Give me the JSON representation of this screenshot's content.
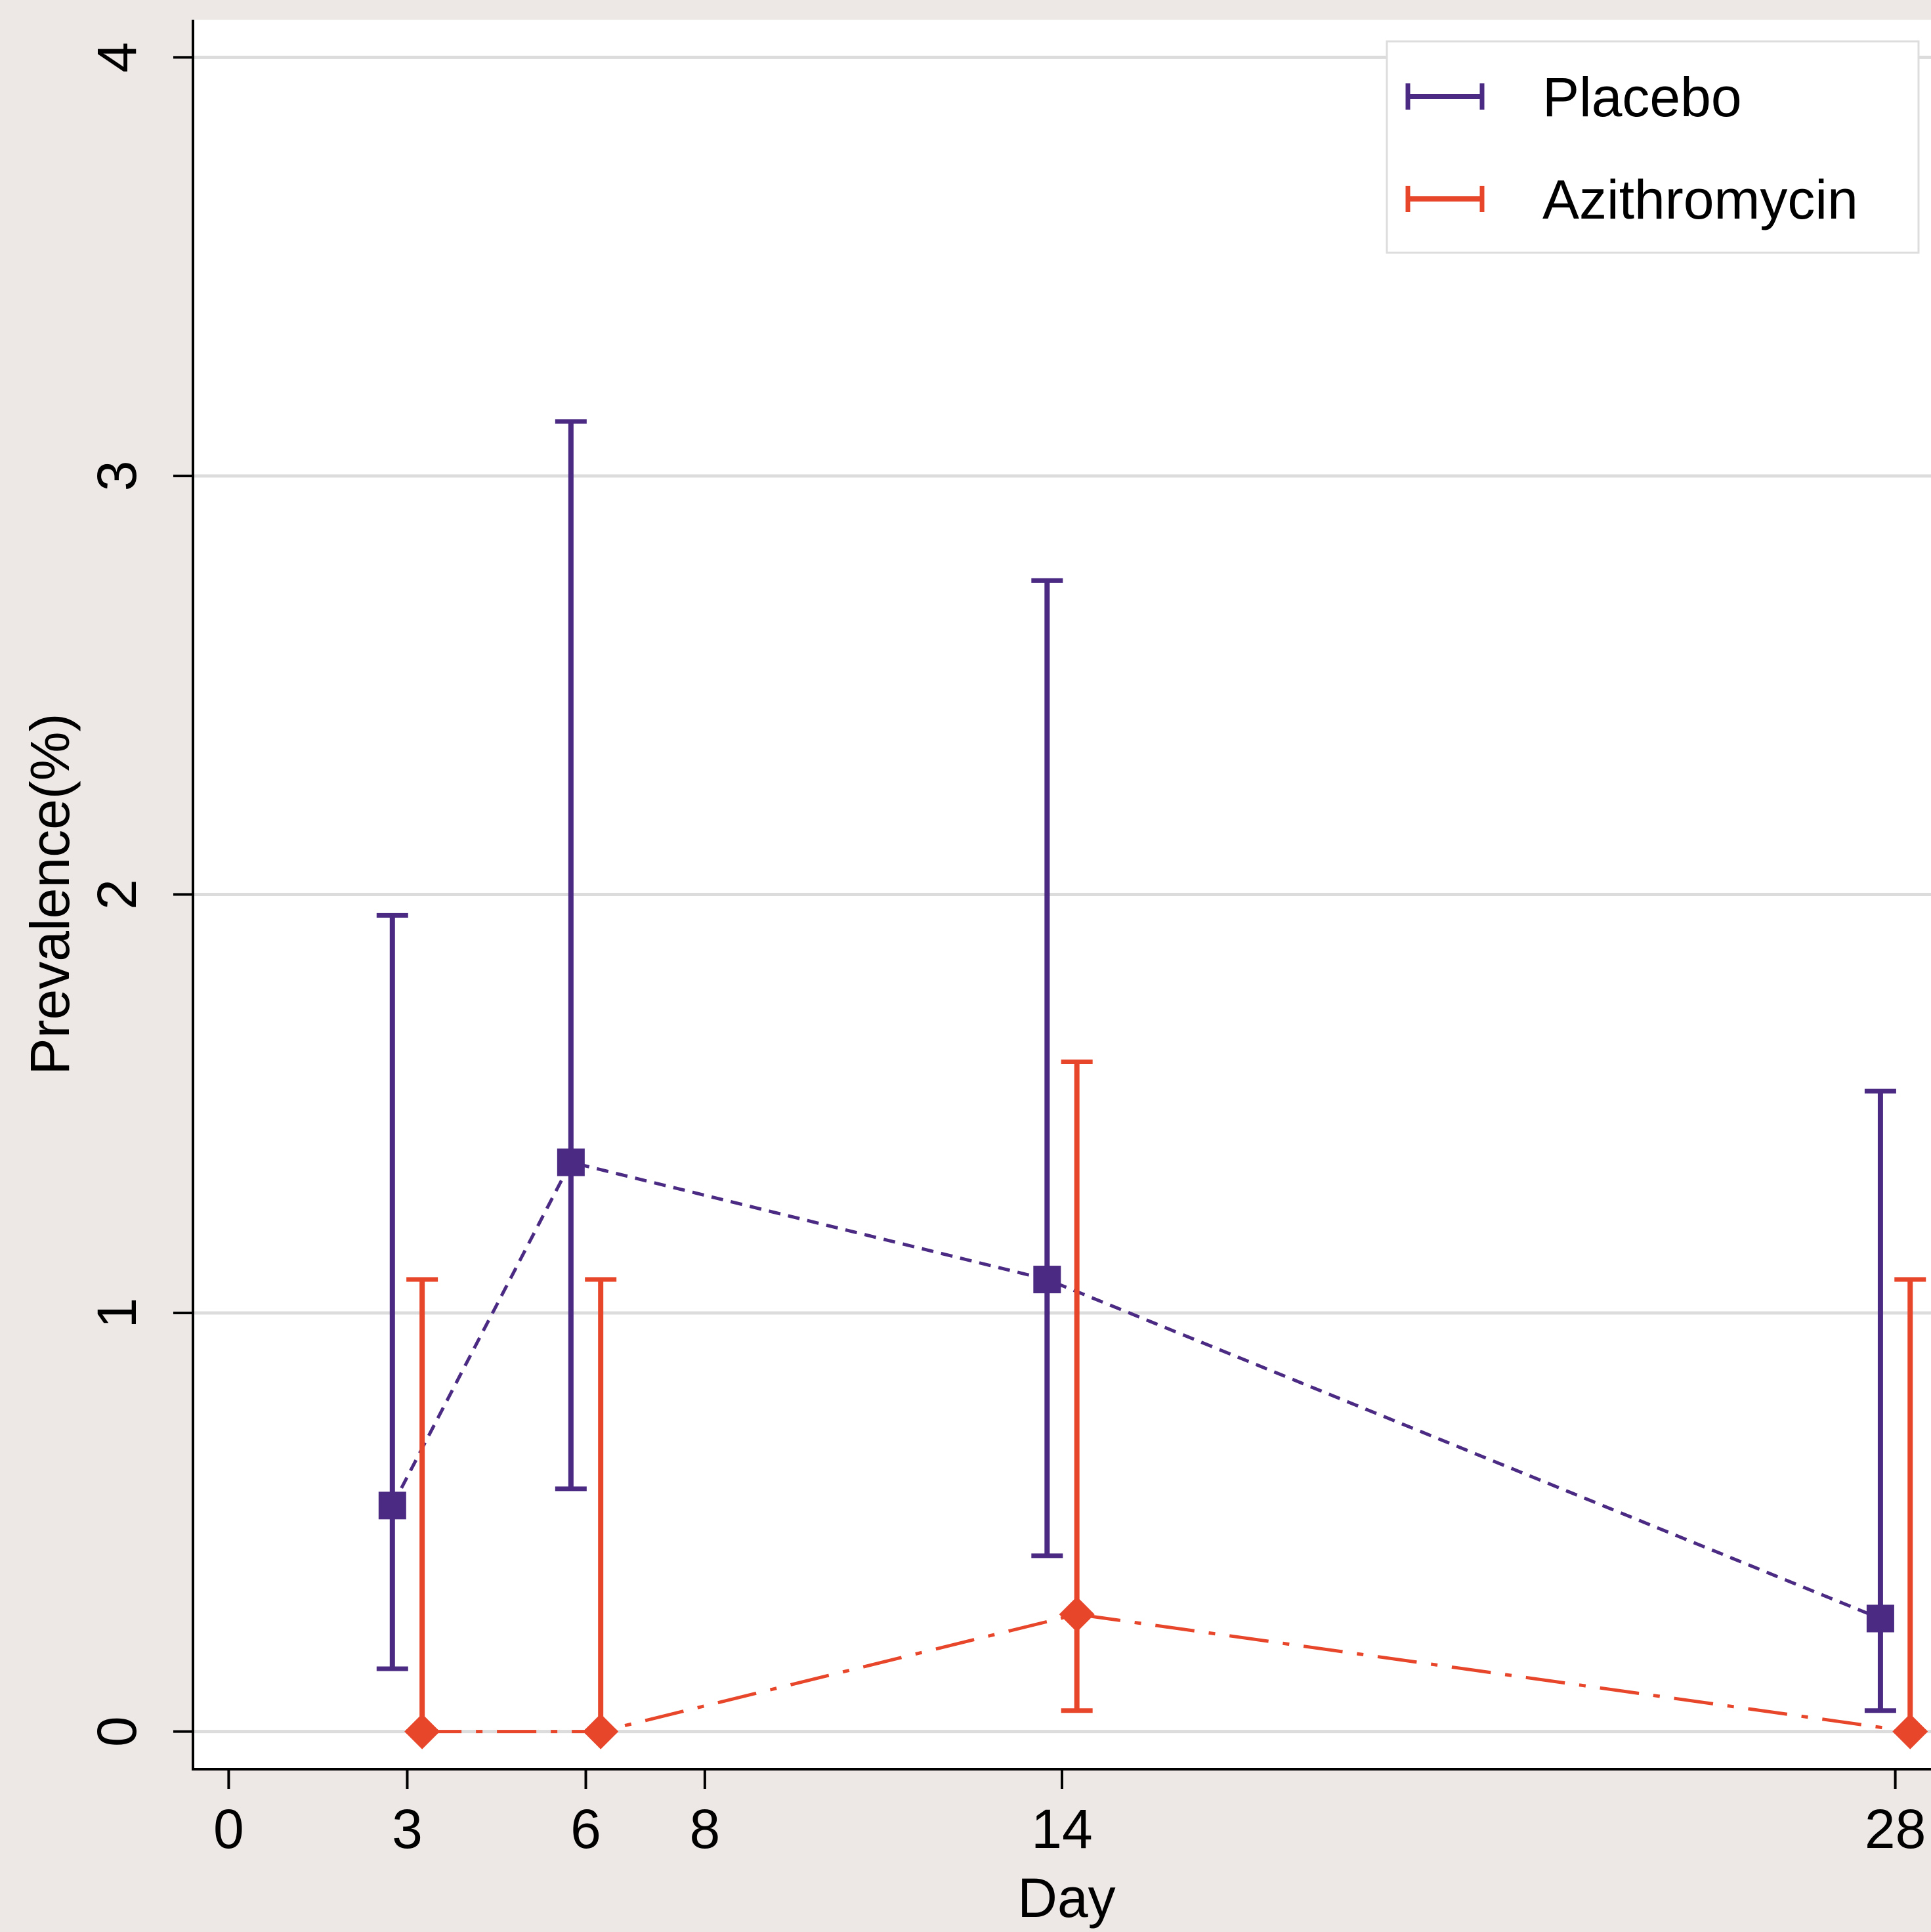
{
  "chart_data": {
    "type": "line",
    "xlabel": "Day",
    "ylabel": "Prevalence(%)",
    "x_ticks": [
      0,
      3,
      6,
      8,
      14,
      28
    ],
    "y_ticks": [
      0,
      1,
      2,
      3,
      4
    ],
    "xlim": [
      -0.6,
      28.6
    ],
    "ylim": [
      -0.09,
      4.09
    ],
    "grid": "horizontal",
    "legend_position": "top-right",
    "series": [
      {
        "name": "Placebo",
        "color": "#4a2a82",
        "marker": "square",
        "line_style": "dashed",
        "points": [
          {
            "x": 2.75,
            "y": 0.54,
            "ci_low": 0.15,
            "ci_high": 1.95
          },
          {
            "x": 5.75,
            "y": 1.36,
            "ci_low": 0.58,
            "ci_high": 3.13
          },
          {
            "x": 13.75,
            "y": 1.08,
            "ci_low": 0.42,
            "ci_high": 2.75
          },
          {
            "x": 27.75,
            "y": 0.27,
            "ci_low": 0.05,
            "ci_high": 1.53
          }
        ]
      },
      {
        "name": "Azithromycin",
        "color": "#e8462a",
        "marker": "diamond",
        "line_style": "dash-dot",
        "points": [
          {
            "x": 3.25,
            "y": 0,
            "ci_low": 0,
            "ci_high": 1.08
          },
          {
            "x": 6.25,
            "y": 0,
            "ci_low": 0,
            "ci_high": 1.08
          },
          {
            "x": 14.25,
            "y": 0.28,
            "ci_low": 0.05,
            "ci_high": 1.6
          },
          {
            "x": 28.25,
            "y": 0,
            "ci_low": 0,
            "ci_high": 1.08
          }
        ]
      }
    ]
  }
}
